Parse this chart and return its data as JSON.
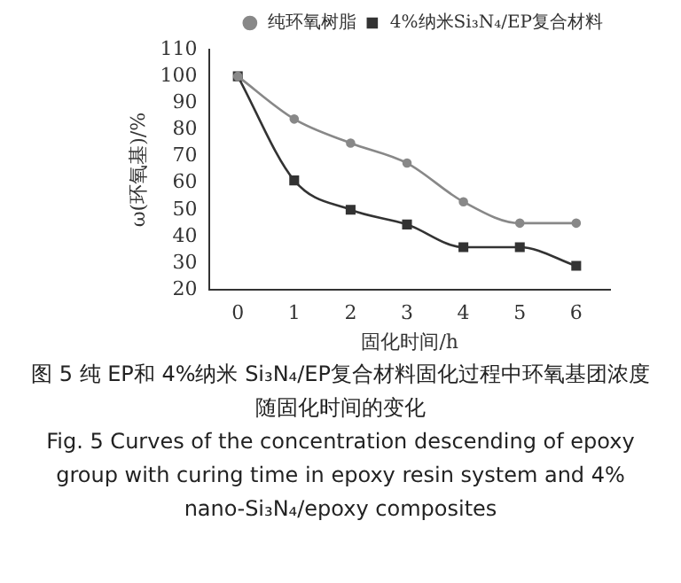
{
  "chart_data": {
    "type": "line",
    "xlabel": "固化时间/h",
    "ylabel": "ω(环氧基)/%",
    "x": [
      0,
      1,
      2,
      3,
      4,
      5,
      6
    ],
    "series": [
      {
        "name": "4%纳米Si₃N₄/EP复合材料",
        "color": "#333333",
        "marker": "square",
        "values": [
          100,
          61,
          50,
          44.5,
          36,
          36,
          29
        ]
      },
      {
        "name": "纯环氧树脂",
        "color": "#888888",
        "marker": "circle",
        "values": [
          100,
          84,
          75,
          67.5,
          53,
          45,
          45
        ]
      }
    ],
    "xlim": [
      -0.5,
      6.6
    ],
    "xticks": [
      0,
      1,
      2,
      3,
      4,
      5,
      6
    ],
    "ylim": [
      20,
      110
    ],
    "yticks": [
      20,
      30,
      40,
      50,
      60,
      70,
      80,
      90,
      100,
      110
    ],
    "grid": false,
    "legend": "top right",
    "annotations": [
      "图 5 纯 EP和 4%纳米 Si₃N₄/EP复合材料固化过程中环氧基团浓度随固化时间的变化",
      "Fig. 5 Curves of the concentration descending of epoxy group with curing time in epoxy resin system and 4% nano‑Si₃N₄/epoxy composites"
    ]
  }
}
